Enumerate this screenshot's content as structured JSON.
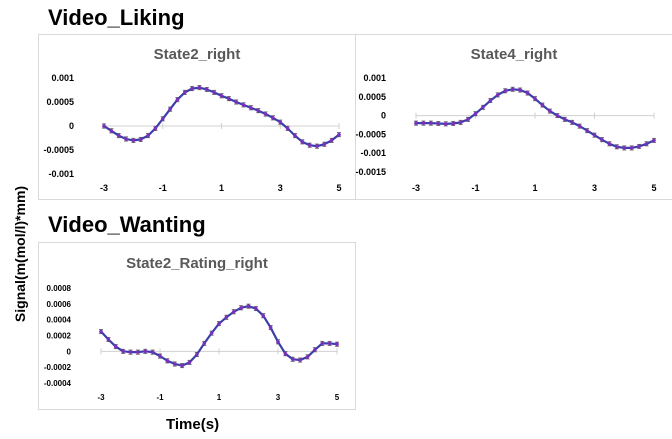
{
  "sections": {
    "liking": "Video_Liking",
    "wanting": "Video_Wanting"
  },
  "axis": {
    "ylabel": "Signal(m(mol/l)*mm)",
    "xlabel": "Time(s)"
  },
  "colors": {
    "line": "#3b3fa8",
    "marker": "#7b2fbf",
    "error": "#555555",
    "zero": "#d0d0d0"
  },
  "chart_data": [
    {
      "type": "line",
      "title": "State2_right",
      "x": [
        -3,
        -2.75,
        -2.5,
        -2.25,
        -2,
        -1.75,
        -1.5,
        -1.25,
        -1,
        -0.75,
        -0.5,
        -0.25,
        0,
        0.25,
        0.5,
        0.75,
        1,
        1.25,
        1.5,
        1.75,
        2,
        2.25,
        2.5,
        2.75,
        3,
        3.25,
        3.5,
        3.75,
        4,
        4.25,
        4.5,
        4.75,
        5
      ],
      "series": [
        {
          "values": [
            0,
            -0.0001,
            -0.0002,
            -0.00027,
            -0.0003,
            -0.00028,
            -0.0002,
            -5e-05,
            0.00015,
            0.00035,
            0.00055,
            0.0007,
            0.00078,
            0.0008,
            0.00076,
            0.0007,
            0.00063,
            0.00057,
            0.0005,
            0.00044,
            0.00038,
            0.00032,
            0.00025,
            0.00017,
            8e-05,
            -5e-05,
            -0.0002,
            -0.00033,
            -0.0004,
            -0.00042,
            -0.00038,
            -0.0003,
            -0.00018
          ]
        }
      ],
      "xticks": [
        "-3",
        "-1",
        "1",
        "3",
        "5"
      ],
      "yticks": [
        "0.001",
        "0.0005",
        "0",
        "-0.0005",
        "-0.001"
      ],
      "ylim": [
        -0.001,
        0.001
      ],
      "xlim": [
        -3,
        5
      ]
    },
    {
      "type": "line",
      "title": "State4_right",
      "x": [
        -3,
        -2.75,
        -2.5,
        -2.25,
        -2,
        -1.75,
        -1.5,
        -1.25,
        -1,
        -0.75,
        -0.5,
        -0.25,
        0,
        0.25,
        0.5,
        0.75,
        1,
        1.25,
        1.5,
        1.75,
        2,
        2.25,
        2.5,
        2.75,
        3,
        3.25,
        3.5,
        3.75,
        4,
        4.25,
        4.5,
        4.75,
        5
      ],
      "series": [
        {
          "values": [
            -0.0002,
            -0.0002,
            -0.0002,
            -0.00021,
            -0.00022,
            -0.00021,
            -0.00018,
            -0.0001,
            5e-05,
            0.00022,
            0.0004,
            0.00055,
            0.00066,
            0.0007,
            0.00068,
            0.0006,
            0.00045,
            0.00028,
            0.00012,
            0,
            -0.0001,
            -0.00018,
            -0.00028,
            -0.0004,
            -0.00052,
            -0.00064,
            -0.00075,
            -0.00083,
            -0.00086,
            -0.00086,
            -0.00082,
            -0.00075,
            -0.00066
          ]
        }
      ],
      "xticks": [
        "-3",
        "-1",
        "1",
        "3",
        "5"
      ],
      "yticks": [
        "0.001",
        "0.0005",
        "0",
        "-0.0005",
        "-0.001",
        "-0.0015"
      ],
      "ylim": [
        -0.0015,
        0.001
      ],
      "xlim": [
        -3,
        5
      ]
    },
    {
      "type": "line",
      "title": "State2_Rating_right",
      "x": [
        -3,
        -2.75,
        -2.5,
        -2.25,
        -2,
        -1.75,
        -1.5,
        -1.25,
        -1,
        -0.75,
        -0.5,
        -0.25,
        0,
        0.25,
        0.5,
        0.75,
        1,
        1.25,
        1.5,
        1.75,
        2,
        2.25,
        2.5,
        2.75,
        3,
        3.25,
        3.5,
        3.75,
        4,
        4.25,
        4.5,
        4.75,
        5
      ],
      "series": [
        {
          "values": [
            0.00025,
            0.00015,
            6e-05,
            0,
            -1e-05,
            -1e-05,
            0,
            -1e-05,
            -6e-05,
            -0.00012,
            -0.00016,
            -0.00018,
            -0.00014,
            -4e-05,
            0.0001,
            0.00023,
            0.00035,
            0.00043,
            0.0005,
            0.00055,
            0.00057,
            0.00054,
            0.00045,
            0.0003,
            0.00012,
            -3e-05,
            -0.0001,
            -0.00011,
            -7e-05,
            2e-05,
            0.0001,
            0.0001,
            9e-05
          ]
        }
      ],
      "xticks": [
        "-3",
        "-1",
        "1",
        "3",
        "5"
      ],
      "yticks": [
        "0.0008",
        "0.0006",
        "0.0004",
        "0.0002",
        "0",
        "-0.0002",
        "-0.0004"
      ],
      "ylim": [
        -0.0004,
        0.0008
      ],
      "xlim": [
        -3,
        5
      ]
    }
  ]
}
